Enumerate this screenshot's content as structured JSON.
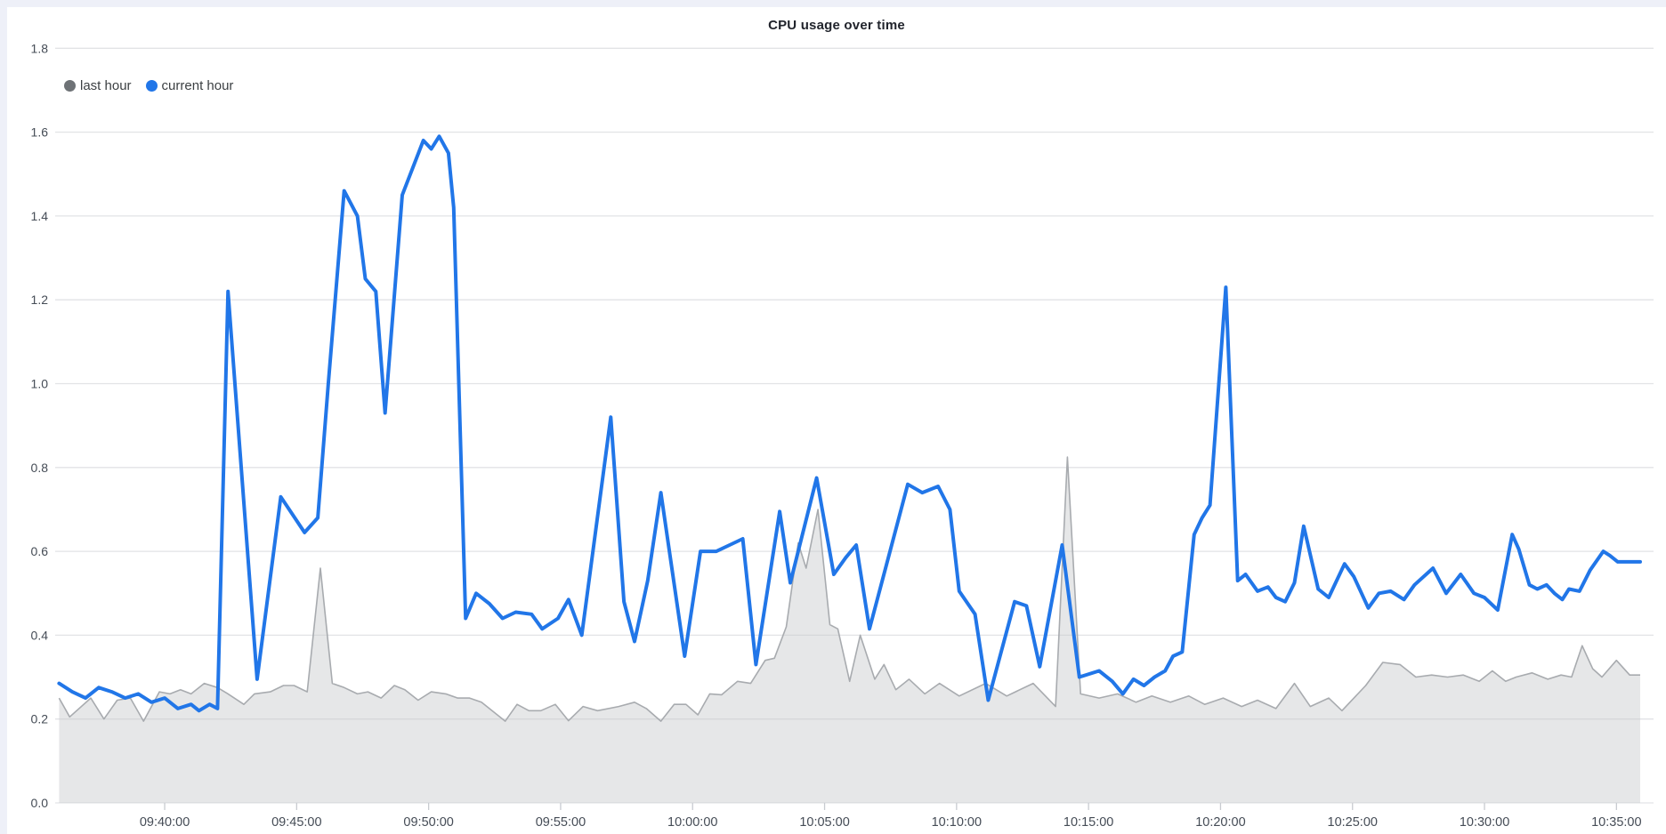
{
  "chart_data": {
    "type": "line",
    "title": "CPU usage over time",
    "legend_position": "top-left",
    "grid": true,
    "background_color": "#ffffff",
    "page_edge_color": "#eef0f8",
    "grid_color": "#e2e3e6",
    "tick_color": "#c8cbd0",
    "label_color": "#454c56",
    "ylim": [
      0,
      1.8
    ],
    "y_ticks": [
      {
        "v": 0.0,
        "label": "0.0"
      },
      {
        "v": 0.2,
        "label": "0.2"
      },
      {
        "v": 0.4,
        "label": "0.4"
      },
      {
        "v": 0.6,
        "label": "0.6"
      },
      {
        "v": 0.8,
        "label": "0.8"
      },
      {
        "v": 1.0,
        "label": "1.0"
      },
      {
        "v": 1.2,
        "label": "1.2"
      },
      {
        "v": 1.4,
        "label": "1.4"
      },
      {
        "v": 1.6,
        "label": "1.6"
      },
      {
        "v": 1.8,
        "label": "1.8"
      }
    ],
    "x_axis_start": "09:36:00",
    "x_axis_end": "10:36:00",
    "x_ticks": [
      {
        "m": 4,
        "label": "09:40:00"
      },
      {
        "m": 9,
        "label": "09:45:00"
      },
      {
        "m": 14,
        "label": "09:50:00"
      },
      {
        "m": 19,
        "label": "09:55:00"
      },
      {
        "m": 24,
        "label": "10:00:00"
      },
      {
        "m": 29,
        "label": "10:05:00"
      },
      {
        "m": 34,
        "label": "10:10:00"
      },
      {
        "m": 39,
        "label": "10:15:00"
      },
      {
        "m": 44,
        "label": "10:20:00"
      },
      {
        "m": 49,
        "label": "10:25:00"
      },
      {
        "m": 54,
        "label": "10:30:00"
      },
      {
        "m": 59,
        "label": "10:35:00"
      }
    ],
    "series": [
      {
        "name": "last hour",
        "kind": "area",
        "line_color": "#a8abaf",
        "fill_color": "rgba(199,201,205,0.45)",
        "legend_dot_color": "#6e7276",
        "points": [
          [
            0,
            0.25
          ],
          [
            0.4,
            0.205
          ],
          [
            1.2,
            0.25
          ],
          [
            1.7,
            0.2
          ],
          [
            2.2,
            0.245
          ],
          [
            2.7,
            0.25
          ],
          [
            3.2,
            0.195
          ],
          [
            3.8,
            0.265
          ],
          [
            4.2,
            0.26
          ],
          [
            4.6,
            0.27
          ],
          [
            5,
            0.26
          ],
          [
            5.5,
            0.285
          ],
          [
            6,
            0.275
          ],
          [
            6.4,
            0.26
          ],
          [
            7,
            0.235
          ],
          [
            7.4,
            0.26
          ],
          [
            8,
            0.265
          ],
          [
            8.5,
            0.28
          ],
          [
            8.9,
            0.28
          ],
          [
            9.4,
            0.265
          ],
          [
            9.9,
            0.56
          ],
          [
            10.35,
            0.285
          ],
          [
            10.8,
            0.275
          ],
          [
            11.3,
            0.26
          ],
          [
            11.7,
            0.265
          ],
          [
            12.2,
            0.25
          ],
          [
            12.7,
            0.28
          ],
          [
            13.1,
            0.27
          ],
          [
            13.6,
            0.245
          ],
          [
            14.1,
            0.265
          ],
          [
            14.65,
            0.26
          ],
          [
            15.1,
            0.25
          ],
          [
            15.55,
            0.25
          ],
          [
            16,
            0.24
          ],
          [
            16.9,
            0.195
          ],
          [
            17.35,
            0.235
          ],
          [
            17.8,
            0.22
          ],
          [
            18.25,
            0.22
          ],
          [
            18.8,
            0.235
          ],
          [
            19.3,
            0.196
          ],
          [
            19.85,
            0.23
          ],
          [
            20.4,
            0.22
          ],
          [
            21.2,
            0.23
          ],
          [
            21.8,
            0.24
          ],
          [
            22.25,
            0.225
          ],
          [
            22.8,
            0.195
          ],
          [
            23.3,
            0.235
          ],
          [
            23.75,
            0.235
          ],
          [
            24.2,
            0.21
          ],
          [
            24.65,
            0.26
          ],
          [
            25.1,
            0.258
          ],
          [
            25.7,
            0.29
          ],
          [
            26.2,
            0.285
          ],
          [
            26.75,
            0.34
          ],
          [
            27.1,
            0.345
          ],
          [
            27.55,
            0.42
          ],
          [
            28,
            0.62
          ],
          [
            28.3,
            0.56
          ],
          [
            28.75,
            0.7
          ],
          [
            29.2,
            0.425
          ],
          [
            29.5,
            0.415
          ],
          [
            29.95,
            0.29
          ],
          [
            30.35,
            0.4
          ],
          [
            30.9,
            0.295
          ],
          [
            31.25,
            0.33
          ],
          [
            31.7,
            0.27
          ],
          [
            32.2,
            0.295
          ],
          [
            32.8,
            0.26
          ],
          [
            33.35,
            0.285
          ],
          [
            34.1,
            0.255
          ],
          [
            35.1,
            0.285
          ],
          [
            35.9,
            0.255
          ],
          [
            36.9,
            0.285
          ],
          [
            37.75,
            0.23
          ],
          [
            38.2,
            0.825
          ],
          [
            38.7,
            0.26
          ],
          [
            39.4,
            0.25
          ],
          [
            40.1,
            0.26
          ],
          [
            40.8,
            0.24
          ],
          [
            41.4,
            0.255
          ],
          [
            42.1,
            0.24
          ],
          [
            42.8,
            0.255
          ],
          [
            43.4,
            0.235
          ],
          [
            44.1,
            0.25
          ],
          [
            44.8,
            0.23
          ],
          [
            45.4,
            0.245
          ],
          [
            46.1,
            0.225
          ],
          [
            46.8,
            0.285
          ],
          [
            47.4,
            0.23
          ],
          [
            48.1,
            0.25
          ],
          [
            48.6,
            0.22
          ],
          [
            49.5,
            0.28
          ],
          [
            50.15,
            0.335
          ],
          [
            50.8,
            0.33
          ],
          [
            51.4,
            0.3
          ],
          [
            52,
            0.305
          ],
          [
            52.6,
            0.3
          ],
          [
            53.2,
            0.305
          ],
          [
            53.8,
            0.29
          ],
          [
            54.3,
            0.315
          ],
          [
            54.8,
            0.29
          ],
          [
            55.2,
            0.3
          ],
          [
            55.8,
            0.31
          ],
          [
            56.4,
            0.295
          ],
          [
            56.9,
            0.305
          ],
          [
            57.3,
            0.3
          ],
          [
            57.7,
            0.375
          ],
          [
            58.1,
            0.32
          ],
          [
            58.45,
            0.3
          ],
          [
            59,
            0.34
          ],
          [
            59.5,
            0.305
          ],
          [
            59.9,
            0.305
          ]
        ]
      },
      {
        "name": "current hour",
        "kind": "line",
        "line_color": "#2176e8",
        "legend_dot_color": "#2176e8",
        "points": [
          [
            0,
            0.285
          ],
          [
            0.5,
            0.265
          ],
          [
            1,
            0.25
          ],
          [
            1.5,
            0.275
          ],
          [
            2,
            0.265
          ],
          [
            2.5,
            0.25
          ],
          [
            3,
            0.26
          ],
          [
            3.5,
            0.24
          ],
          [
            4,
            0.25
          ],
          [
            4.5,
            0.225
          ],
          [
            5,
            0.235
          ],
          [
            5.3,
            0.22
          ],
          [
            5.7,
            0.235
          ],
          [
            6,
            0.225
          ],
          [
            6.4,
            1.22
          ],
          [
            7.5,
            0.295
          ],
          [
            8.4,
            0.73
          ],
          [
            9.3,
            0.645
          ],
          [
            9.8,
            0.68
          ],
          [
            10.2,
            1.0
          ],
          [
            10.8,
            1.46
          ],
          [
            11.3,
            1.4
          ],
          [
            11.6,
            1.25
          ],
          [
            12,
            1.22
          ],
          [
            12.35,
            0.93
          ],
          [
            13,
            1.45
          ],
          [
            13.8,
            1.58
          ],
          [
            14.1,
            1.56
          ],
          [
            14.4,
            1.59
          ],
          [
            14.75,
            1.55
          ],
          [
            14.95,
            1.42
          ],
          [
            15.4,
            0.44
          ],
          [
            15.8,
            0.5
          ],
          [
            16.3,
            0.475
          ],
          [
            16.8,
            0.44
          ],
          [
            17.3,
            0.455
          ],
          [
            17.9,
            0.45
          ],
          [
            18.3,
            0.415
          ],
          [
            18.9,
            0.44
          ],
          [
            19.3,
            0.485
          ],
          [
            19.8,
            0.4
          ],
          [
            20.9,
            0.92
          ],
          [
            21.4,
            0.48
          ],
          [
            21.8,
            0.385
          ],
          [
            22.3,
            0.53
          ],
          [
            22.8,
            0.74
          ],
          [
            23.7,
            0.35
          ],
          [
            24.3,
            0.6
          ],
          [
            24.9,
            0.6
          ],
          [
            25.4,
            0.615
          ],
          [
            25.9,
            0.63
          ],
          [
            26.4,
            0.33
          ],
          [
            27.3,
            0.695
          ],
          [
            27.7,
            0.525
          ],
          [
            28.7,
            0.775
          ],
          [
            29.35,
            0.545
          ],
          [
            29.8,
            0.585
          ],
          [
            30.2,
            0.615
          ],
          [
            30.7,
            0.415
          ],
          [
            32.15,
            0.76
          ],
          [
            32.7,
            0.74
          ],
          [
            33.3,
            0.755
          ],
          [
            33.75,
            0.7
          ],
          [
            34.1,
            0.505
          ],
          [
            34.7,
            0.45
          ],
          [
            35.2,
            0.245
          ],
          [
            36.2,
            0.48
          ],
          [
            36.65,
            0.47
          ],
          [
            37.15,
            0.325
          ],
          [
            38,
            0.615
          ],
          [
            38.65,
            0.3
          ],
          [
            39.4,
            0.315
          ],
          [
            39.9,
            0.29
          ],
          [
            40.3,
            0.26
          ],
          [
            40.7,
            0.295
          ],
          [
            41.1,
            0.28
          ],
          [
            41.5,
            0.3
          ],
          [
            41.9,
            0.315
          ],
          [
            42.2,
            0.35
          ],
          [
            42.55,
            0.36
          ],
          [
            43,
            0.64
          ],
          [
            43.3,
            0.68
          ],
          [
            43.6,
            0.71
          ],
          [
            44.2,
            1.23
          ],
          [
            44.65,
            0.53
          ],
          [
            44.95,
            0.545
          ],
          [
            45.4,
            0.505
          ],
          [
            45.8,
            0.515
          ],
          [
            46.1,
            0.49
          ],
          [
            46.45,
            0.48
          ],
          [
            46.8,
            0.525
          ],
          [
            47.15,
            0.66
          ],
          [
            47.7,
            0.51
          ],
          [
            48.1,
            0.49
          ],
          [
            48.7,
            0.57
          ],
          [
            49.05,
            0.54
          ],
          [
            49.6,
            0.465
          ],
          [
            50,
            0.5
          ],
          [
            50.45,
            0.505
          ],
          [
            50.95,
            0.485
          ],
          [
            51.35,
            0.52
          ],
          [
            52.05,
            0.56
          ],
          [
            52.55,
            0.5
          ],
          [
            53.1,
            0.545
          ],
          [
            53.6,
            0.5
          ],
          [
            54,
            0.49
          ],
          [
            54.5,
            0.46
          ],
          [
            55.05,
            0.64
          ],
          [
            55.3,
            0.605
          ],
          [
            55.7,
            0.52
          ],
          [
            56,
            0.51
          ],
          [
            56.35,
            0.52
          ],
          [
            56.65,
            0.5
          ],
          [
            56.95,
            0.485
          ],
          [
            57.2,
            0.51
          ],
          [
            57.6,
            0.505
          ],
          [
            58,
            0.555
          ],
          [
            58.5,
            0.6
          ],
          [
            58.75,
            0.59
          ],
          [
            59.05,
            0.575
          ],
          [
            59.4,
            0.575
          ],
          [
            59.9,
            0.575
          ]
        ]
      }
    ]
  }
}
